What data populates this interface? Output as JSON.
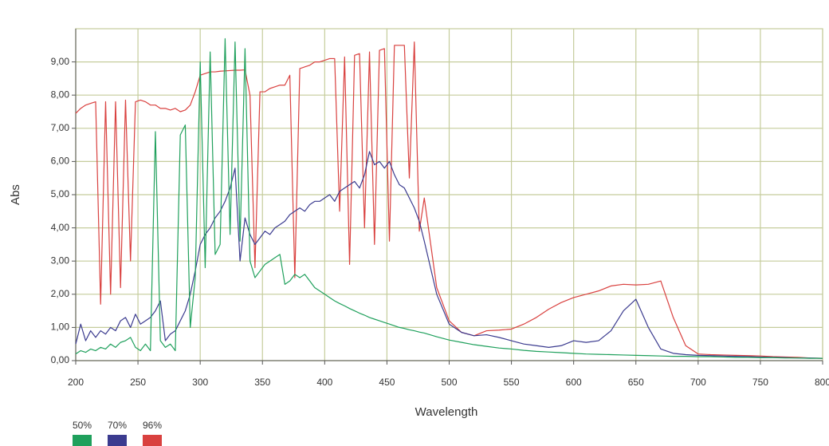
{
  "chart_data": {
    "type": "line",
    "x_label": "Wavelength",
    "y_label": "Abs",
    "x": [
      200,
      204,
      208,
      212,
      216,
      220,
      224,
      228,
      232,
      236,
      240,
      244,
      248,
      252,
      256,
      260,
      264,
      268,
      272,
      276,
      280,
      284,
      288,
      292,
      296,
      300,
      304,
      308,
      312,
      316,
      320,
      324,
      328,
      332,
      336,
      340,
      344,
      348,
      352,
      356,
      360,
      364,
      368,
      372,
      376,
      380,
      384,
      388,
      392,
      396,
      400,
      404,
      408,
      412,
      416,
      420,
      424,
      428,
      432,
      436,
      440,
      444,
      448,
      452,
      456,
      460,
      464,
      468,
      472,
      476,
      480,
      490,
      500,
      510,
      520,
      530,
      540,
      550,
      560,
      570,
      580,
      590,
      600,
      610,
      620,
      630,
      640,
      650,
      660,
      670,
      680,
      690,
      700,
      710,
      720,
      730,
      740,
      750,
      760,
      770,
      780,
      790,
      800
    ],
    "series": [
      {
        "name": "50%",
        "color": "#1fa05c",
        "values": [
          0.2,
          0.3,
          0.25,
          0.35,
          0.3,
          0.4,
          0.35,
          0.5,
          0.4,
          0.55,
          0.6,
          0.7,
          0.4,
          0.3,
          0.5,
          0.3,
          6.9,
          0.6,
          0.4,
          0.5,
          0.3,
          6.8,
          7.1,
          1.0,
          2.5,
          9.0,
          2.8,
          9.3,
          3.2,
          3.5,
          9.7,
          3.8,
          9.6,
          3.6,
          9.4,
          3.0,
          2.5,
          2.7,
          2.9,
          3.0,
          3.1,
          3.2,
          2.3,
          2.4,
          2.6,
          2.5,
          2.6,
          2.4,
          2.2,
          2.1,
          2.0,
          1.9,
          1.8,
          1.72,
          1.65,
          1.57,
          1.5,
          1.43,
          1.37,
          1.3,
          1.25,
          1.2,
          1.15,
          1.1,
          1.05,
          1.0,
          0.97,
          0.93,
          0.9,
          0.86,
          0.83,
          0.72,
          0.62,
          0.55,
          0.48,
          0.43,
          0.38,
          0.35,
          0.31,
          0.28,
          0.26,
          0.24,
          0.22,
          0.2,
          0.19,
          0.18,
          0.17,
          0.16,
          0.15,
          0.14,
          0.13,
          0.13,
          0.12,
          0.12,
          0.11,
          0.1,
          0.1,
          0.09,
          0.09,
          0.08,
          0.08,
          0.07,
          0.07
        ]
      },
      {
        "name": "70%",
        "color": "#3b3b8f",
        "values": [
          0.5,
          1.1,
          0.6,
          0.9,
          0.7,
          0.9,
          0.8,
          1.0,
          0.9,
          1.2,
          1.3,
          1.0,
          1.4,
          1.1,
          1.2,
          1.3,
          1.5,
          1.8,
          0.6,
          0.8,
          0.9,
          1.2,
          1.5,
          2.0,
          2.7,
          3.5,
          3.8,
          4.0,
          4.3,
          4.5,
          4.8,
          5.2,
          5.8,
          3.0,
          4.3,
          3.8,
          3.5,
          3.7,
          3.9,
          3.8,
          4.0,
          4.1,
          4.2,
          4.4,
          4.5,
          4.6,
          4.5,
          4.7,
          4.8,
          4.8,
          4.9,
          5.0,
          4.8,
          5.1,
          5.2,
          5.3,
          5.4,
          5.2,
          5.6,
          6.3,
          5.9,
          6.0,
          5.8,
          6.0,
          5.6,
          5.3,
          5.2,
          4.9,
          4.6,
          4.2,
          3.6,
          2.0,
          1.1,
          0.85,
          0.75,
          0.78,
          0.7,
          0.6,
          0.5,
          0.45,
          0.4,
          0.45,
          0.6,
          0.55,
          0.6,
          0.9,
          1.5,
          1.85,
          1.0,
          0.35,
          0.22,
          0.18,
          0.16,
          0.15,
          0.14,
          0.13,
          0.12,
          0.11,
          0.1,
          0.09,
          0.08,
          0.08,
          0.07
        ]
      },
      {
        "name": "96%",
        "color": "#d9413f",
        "values": [
          7.45,
          7.6,
          7.7,
          7.75,
          7.8,
          1.7,
          7.8,
          2.0,
          7.8,
          2.2,
          7.85,
          3.0,
          7.8,
          7.85,
          7.8,
          7.7,
          7.7,
          7.6,
          7.6,
          7.55,
          7.6,
          7.5,
          7.55,
          7.7,
          8.1,
          8.6,
          8.65,
          8.7,
          8.7,
          8.72,
          8.73,
          8.74,
          8.75,
          8.75,
          8.76,
          8.0,
          2.8,
          8.1,
          8.1,
          8.2,
          8.25,
          8.3,
          8.3,
          8.6,
          2.5,
          8.8,
          8.85,
          8.9,
          9.0,
          9.0,
          9.05,
          9.1,
          9.1,
          4.5,
          9.15,
          2.9,
          9.2,
          9.25,
          4.0,
          9.3,
          3.5,
          9.35,
          9.4,
          3.6,
          9.5,
          9.5,
          9.5,
          5.5,
          9.6,
          3.9,
          4.9,
          2.2,
          1.2,
          0.85,
          0.75,
          0.9,
          0.92,
          0.95,
          1.1,
          1.3,
          1.55,
          1.75,
          1.9,
          2.0,
          2.1,
          2.25,
          2.3,
          2.28,
          2.3,
          2.4,
          1.3,
          0.45,
          0.2,
          0.18,
          0.17,
          0.16,
          0.15,
          0.14,
          0.12,
          0.11,
          0.1,
          0.08,
          0.07
        ]
      }
    ],
    "xlim": [
      200,
      800
    ],
    "xticks": [
      200,
      250,
      300,
      350,
      400,
      450,
      500,
      550,
      600,
      650,
      700,
      750,
      800
    ],
    "ylim": [
      0,
      10
    ],
    "yticks": [
      {
        "value": 0,
        "label": "0,00"
      },
      {
        "value": 1,
        "label": "1,00"
      },
      {
        "value": 2,
        "label": "2,00"
      },
      {
        "value": 3,
        "label": "3,00"
      },
      {
        "value": 4,
        "label": "4,00"
      },
      {
        "value": 5,
        "label": "5,00"
      },
      {
        "value": 6,
        "label": "6,00"
      },
      {
        "value": 7,
        "label": "7,00"
      },
      {
        "value": 8,
        "label": "8,00"
      },
      {
        "value": 9,
        "label": "9,00"
      }
    ],
    "grid": true,
    "legend": "bottom-left"
  }
}
